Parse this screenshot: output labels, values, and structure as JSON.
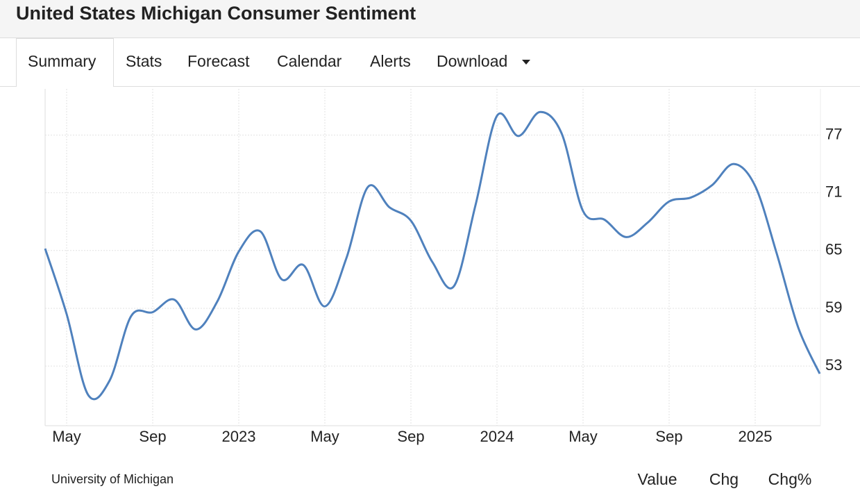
{
  "header": {
    "title": "United States Michigan Consumer Sentiment"
  },
  "tabs": [
    "Summary",
    "Stats",
    "Forecast",
    "Calendar",
    "Alerts",
    "Download"
  ],
  "chart_data": {
    "type": "line",
    "categories": [
      null,
      "May",
      null,
      null,
      null,
      "Sep",
      null,
      null,
      null,
      "2023",
      null,
      null,
      null,
      "May",
      null,
      null,
      null,
      "Sep",
      null,
      null,
      null,
      "2024",
      null,
      null,
      null,
      "May",
      null,
      null,
      null,
      "Sep",
      null,
      null,
      null,
      "2025",
      null,
      null,
      null
    ],
    "series": [
      {
        "name": "Consumer Sentiment",
        "color": "#4f81bd",
        "values": [
          65.2,
          58.4,
          50.0,
          51.5,
          58.2,
          58.6,
          59.9,
          56.8,
          59.7,
          64.9,
          67.0,
          62.0,
          63.5,
          59.2,
          64.2,
          71.6,
          69.5,
          68.1,
          63.8,
          61.3,
          69.7,
          79.0,
          76.9,
          79.4,
          77.2,
          69.1,
          68.2,
          66.4,
          67.9,
          70.1,
          70.5,
          71.8,
          74.0,
          71.7,
          64.7,
          57.0,
          52.2
        ]
      }
    ],
    "ylim": [
      46.8,
      81.8
    ],
    "yticks": [
      53,
      59,
      65,
      71,
      77
    ],
    "grid": true
  },
  "source": "University of Michigan",
  "toggles": [
    "Value",
    "Chg",
    "Chg%"
  ]
}
